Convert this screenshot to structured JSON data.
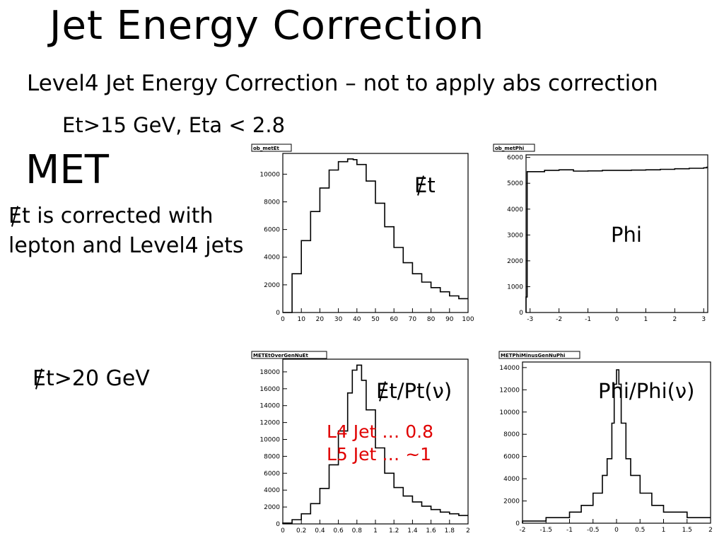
{
  "slide": {
    "title": "Jet Energy Correction",
    "subtitle": "Level4 Jet Energy Correction  – not to apply abs correction",
    "cuts": "Et>15 GeV,  Eta < 2.8",
    "met_heading": "MET",
    "met_note_line1_rest": "t is corrected with",
    "met_note_line2": "lepton and Level4 jets",
    "met_cut_rest": "t>20 GeV",
    "slashed_E": "E",
    "red_notes": [
      "L4 Jet … 0.8",
      "L5 Jet … ~1"
    ]
  },
  "annotations": {
    "met": "t",
    "phi": "Phi",
    "ratio": "t/Pt(ν)",
    "phiratio": "Phi/Phi(ν)"
  },
  "chart_data": [
    {
      "type": "histogram",
      "title": "ob_metEt",
      "xlim": [
        0,
        100
      ],
      "ylim": [
        0,
        11500
      ],
      "xticks": [
        0,
        10,
        20,
        30,
        40,
        50,
        60,
        70,
        80,
        90,
        100
      ],
      "yticks": [
        2000,
        4000,
        6000,
        8000,
        10000
      ],
      "xtick_labels": [
        "0",
        "10",
        "20",
        "30",
        "40",
        "50",
        "60",
        "70",
        "80",
        "90",
        "100"
      ],
      "ytick_labels": [
        "2000",
        "4000",
        "6000",
        "8000",
        "10000"
      ],
      "x": [
        0,
        5,
        10,
        15,
        20,
        25,
        30,
        35,
        38,
        40,
        45,
        50,
        55,
        60,
        65,
        70,
        75,
        80,
        85,
        90,
        95,
        100
      ],
      "values": [
        0,
        2800,
        5200,
        7300,
        9000,
        10300,
        10900,
        11100,
        11050,
        10700,
        9500,
        7900,
        6200,
        4700,
        3600,
        2800,
        2200,
        1800,
        1500,
        1200,
        1000,
        800
      ]
    },
    {
      "type": "histogram",
      "title": "ob_metPhi",
      "xlim": [
        -3.14,
        3.14
      ],
      "ylim": [
        0,
        6100
      ],
      "xticks": [
        -3,
        -2,
        -1,
        0,
        1,
        2,
        3
      ],
      "yticks": [
        1000,
        2000,
        3000,
        4000,
        5000,
        6000
      ],
      "xtick_labels": [
        "-3",
        "-2",
        "-1",
        "0",
        "1",
        "2",
        "3"
      ],
      "ytick_labels": [
        "1000",
        "2000",
        "3000",
        "4000",
        "5000",
        "6000"
      ],
      "x": [
        -3.14,
        -3.1,
        -2.5,
        -2.0,
        -1.5,
        -1.0,
        -0.5,
        0.0,
        0.5,
        1.0,
        1.5,
        2.0,
        2.5,
        3.0,
        3.1,
        3.14
      ],
      "values": [
        600,
        5450,
        5500,
        5520,
        5470,
        5480,
        5500,
        5500,
        5510,
        5520,
        5540,
        5560,
        5580,
        5600,
        5620,
        700
      ]
    },
    {
      "type": "histogram",
      "title": "METEtOverGenNuEt",
      "xlim": [
        0,
        2
      ],
      "ylim": [
        0,
        19500
      ],
      "xticks": [
        0,
        0.2,
        0.4,
        0.6,
        0.8,
        1,
        1.2,
        1.4,
        1.6,
        1.8,
        2
      ],
      "yticks": [
        2000,
        4000,
        6000,
        8000,
        10000,
        12000,
        14000,
        16000,
        18000
      ],
      "xtick_labels": [
        "0",
        "0.2",
        "0.4",
        "0.6",
        "0.8",
        "1",
        "1.2",
        "1.4",
        "1.6",
        "1.8",
        "2"
      ],
      "ytick_labels": [
        "2000",
        "4000",
        "6000",
        "8000",
        "10000",
        "12000",
        "14000",
        "16000",
        "18000"
      ],
      "x": [
        0,
        0.1,
        0.2,
        0.3,
        0.4,
        0.5,
        0.6,
        0.7,
        0.75,
        0.8,
        0.85,
        0.9,
        1.0,
        1.1,
        1.2,
        1.3,
        1.4,
        1.5,
        1.6,
        1.7,
        1.8,
        1.9,
        2.0
      ],
      "values": [
        100,
        500,
        1200,
        2400,
        4200,
        7000,
        11000,
        15500,
        18200,
        18800,
        17000,
        13500,
        9000,
        6000,
        4300,
        3300,
        2600,
        2100,
        1700,
        1400,
        1200,
        1000,
        800
      ]
    },
    {
      "type": "histogram",
      "title": "METPhiMinusGenNuPhi",
      "xlim": [
        -2,
        2
      ],
      "ylim": [
        0,
        14500
      ],
      "xticks": [
        -2,
        -1.5,
        -1,
        -0.5,
        0,
        0.5,
        1,
        1.5,
        2
      ],
      "yticks": [
        2000,
        4000,
        6000,
        8000,
        10000,
        12000,
        14000
      ],
      "xtick_labels": [
        "-2",
        "-1.5",
        "-1",
        "-0.5",
        "0",
        "0.5",
        "1",
        "1.5",
        "2"
      ],
      "ytick_labels": [
        "2000",
        "4000",
        "6000",
        "8000",
        "10000",
        "12000",
        "14000"
      ],
      "x": [
        -2,
        -1.5,
        -1.0,
        -0.75,
        -0.5,
        -0.3,
        -0.2,
        -0.1,
        -0.05,
        0.0,
        0.05,
        0.1,
        0.2,
        0.3,
        0.5,
        0.75,
        1.0,
        1.5,
        2.0
      ],
      "values": [
        200,
        500,
        1000,
        1600,
        2700,
        4300,
        5800,
        9000,
        12500,
        13800,
        12500,
        9000,
        5800,
        4300,
        2700,
        1600,
        1000,
        500,
        250
      ]
    }
  ]
}
